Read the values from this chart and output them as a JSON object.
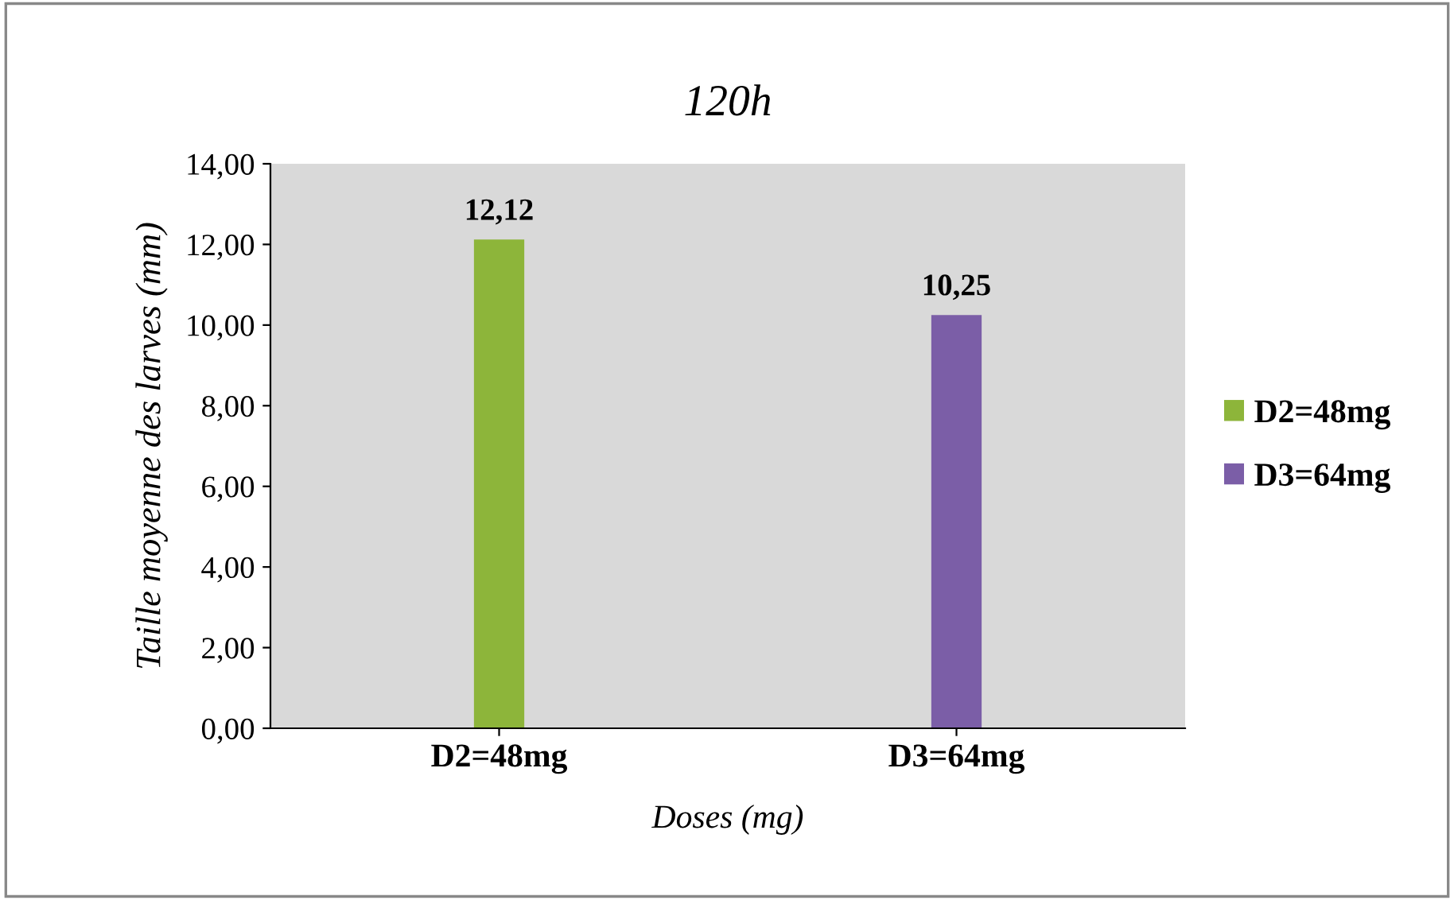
{
  "chart_data": {
    "type": "bar",
    "title": "120h",
    "xlabel": "Doses (mg)",
    "ylabel": "Taille moyenne des larves (mm)",
    "categories": [
      "D2=48mg",
      "D3=64mg"
    ],
    "series": [
      {
        "name": "D2=48mg",
        "color": "#8db53a",
        "values": [
          12.12,
          null
        ],
        "value_labels": [
          "12,12",
          null
        ]
      },
      {
        "name": "D3=64mg",
        "color": "#7b5ea7",
        "values": [
          null,
          10.25
        ],
        "value_labels": [
          null,
          "10,25"
        ]
      }
    ],
    "ylim": [
      0,
      14
    ],
    "yticks": [
      {
        "value": 0,
        "label": "0,00"
      },
      {
        "value": 2,
        "label": "2,00"
      },
      {
        "value": 4,
        "label": "4,00"
      },
      {
        "value": 6,
        "label": "6,00"
      },
      {
        "value": 8,
        "label": "8,00"
      },
      {
        "value": 10,
        "label": "10,00"
      },
      {
        "value": 12,
        "label": "12,00"
      },
      {
        "value": 14,
        "label": "14,00"
      }
    ],
    "legend": "right"
  }
}
